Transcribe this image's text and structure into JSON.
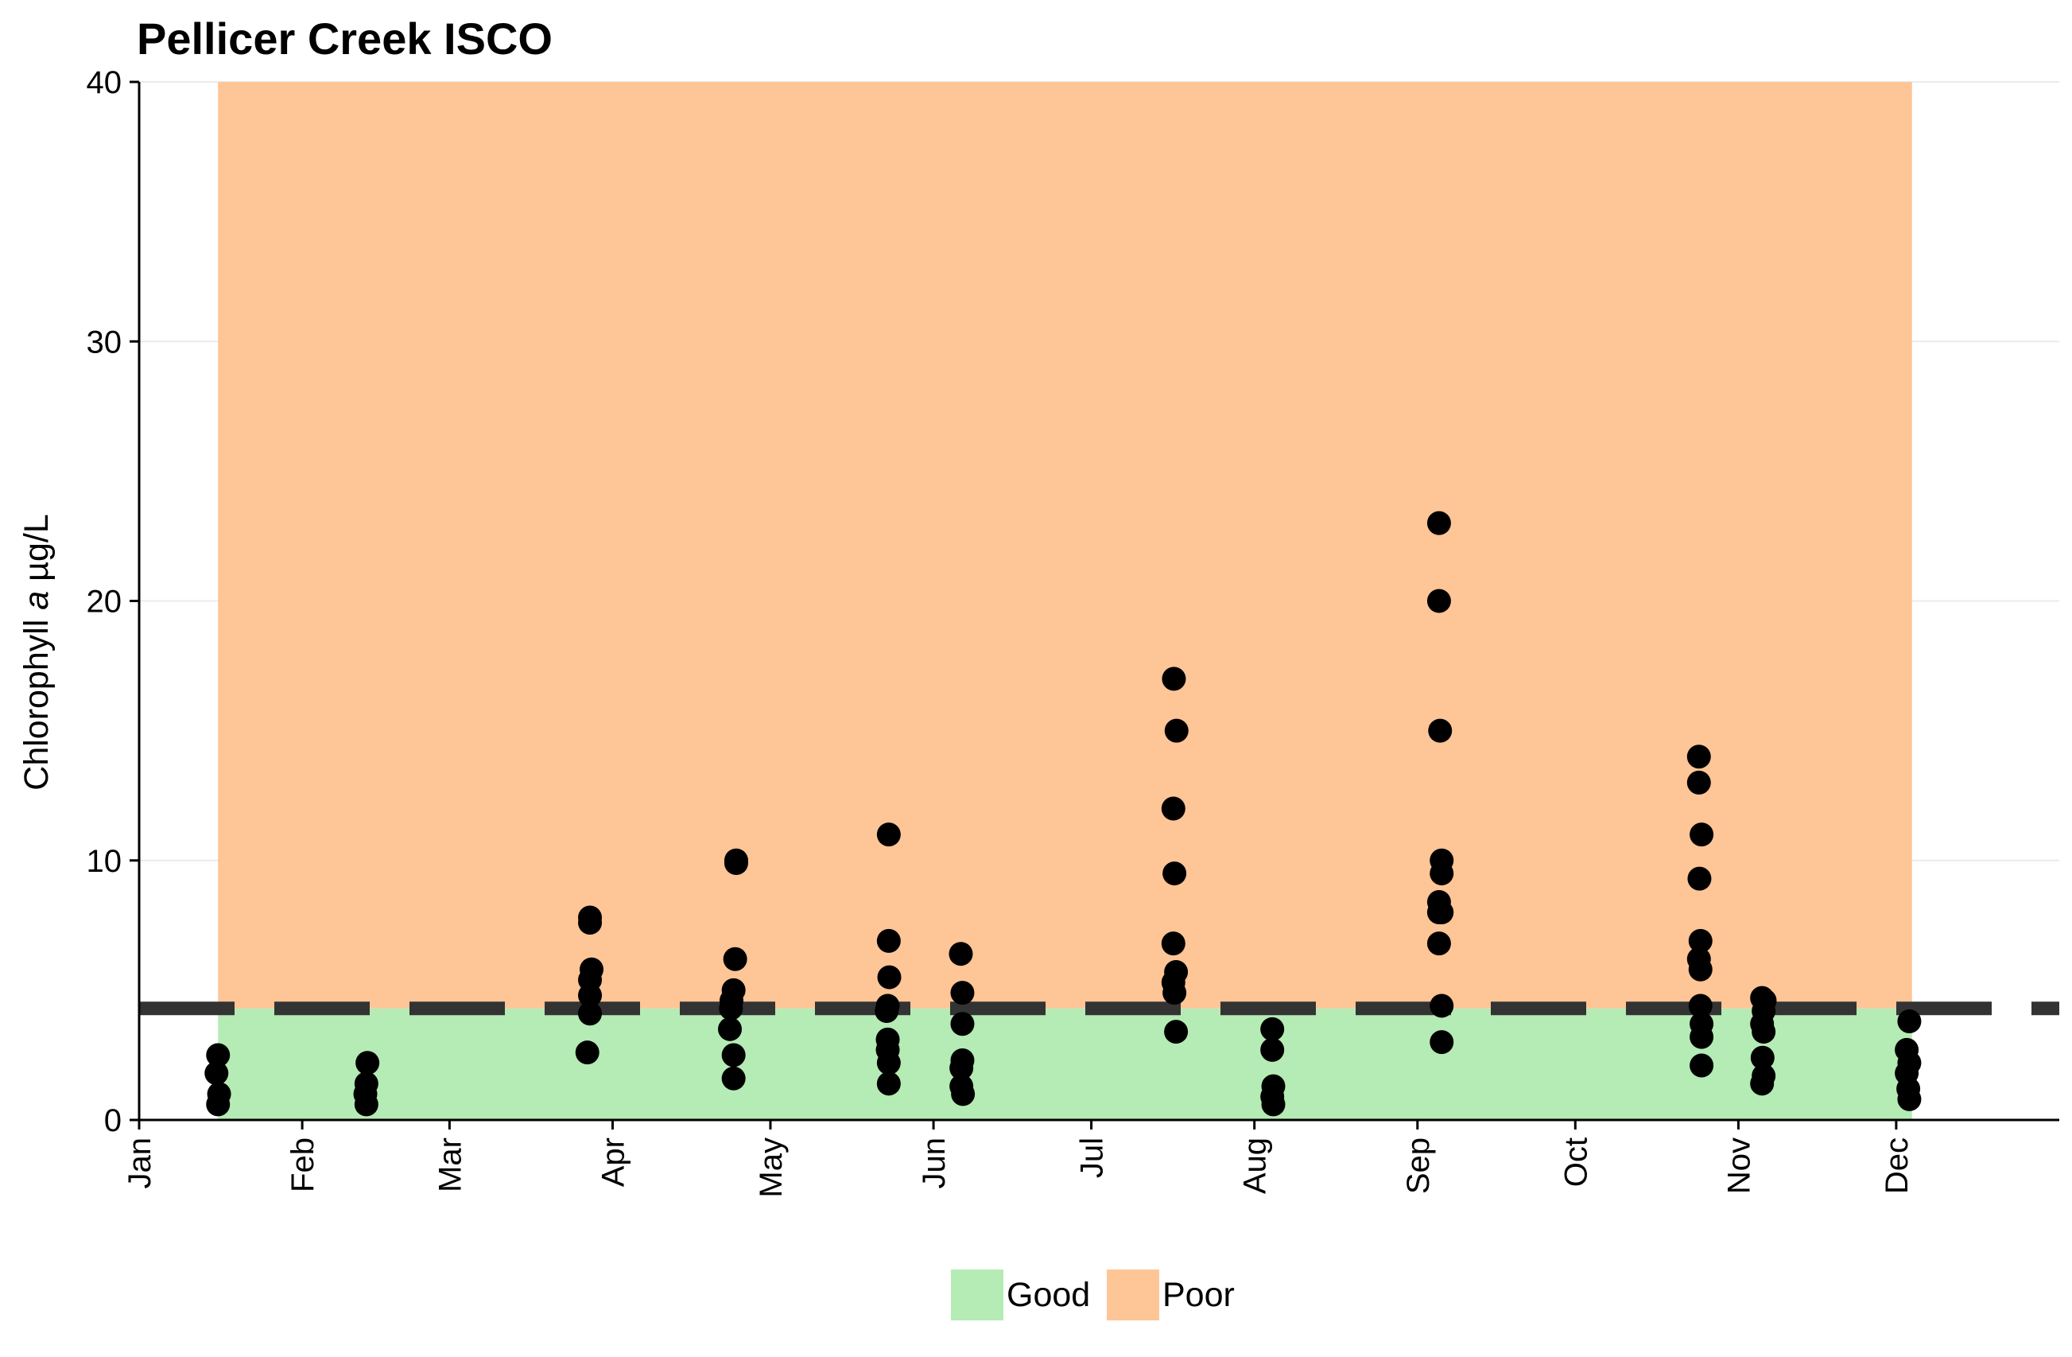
{
  "chart_data": {
    "type": "scatter",
    "title": "Pellicer Creek ISCO",
    "ylabel_parts": [
      "Chlorophyll ",
      "a",
      " µg/L"
    ],
    "xlabel": "",
    "ylim": [
      0,
      40
    ],
    "yticks": [
      0,
      10,
      20,
      30,
      40
    ],
    "x_axis_unit": "day of year",
    "xlim": [
      0,
      365
    ],
    "xticks": [
      {
        "label": "Jan",
        "day": 0
      },
      {
        "label": "Feb",
        "day": 31
      },
      {
        "label": "Mar",
        "day": 59
      },
      {
        "label": "Apr",
        "day": 90
      },
      {
        "label": "May",
        "day": 120
      },
      {
        "label": "Jun",
        "day": 151
      },
      {
        "label": "Jul",
        "day": 181
      },
      {
        "label": "Aug",
        "day": 212
      },
      {
        "label": "Sep",
        "day": 243
      },
      {
        "label": "Oct",
        "day": 273
      },
      {
        "label": "Nov",
        "day": 304
      },
      {
        "label": "Dec",
        "day": 334
      }
    ],
    "threshold": 4.3,
    "bands": [
      {
        "name": "Good",
        "color": "#b5ebb4",
        "ymin": 0,
        "ymax": 4.3,
        "x_start_day": 15,
        "x_end_day": 337
      },
      {
        "name": "Poor",
        "color": "#fec597",
        "ymin": 4.3,
        "ymax": 40,
        "x_start_day": 15,
        "x_end_day": 337
      }
    ],
    "legend": [
      {
        "label": "Good",
        "color": "#b5ebb4"
      },
      {
        "label": "Poor",
        "color": "#fec597"
      }
    ],
    "legend_position": "bottom",
    "grid": "horizontal",
    "point_color": "#000000",
    "points": [
      {
        "x": 15,
        "y": 2.5
      },
      {
        "x": 14.7,
        "y": 1.8
      },
      {
        "x": 15.2,
        "y": 1.0
      },
      {
        "x": 15,
        "y": 0.6
      },
      {
        "x": 43.4,
        "y": 2.2
      },
      {
        "x": 43.2,
        "y": 1.4
      },
      {
        "x": 43,
        "y": 1.0
      },
      {
        "x": 43.2,
        "y": 0.6
      },
      {
        "x": 85.7,
        "y": 7.8
      },
      {
        "x": 85.7,
        "y": 7.6
      },
      {
        "x": 86,
        "y": 5.8
      },
      {
        "x": 85.7,
        "y": 5.4
      },
      {
        "x": 85.7,
        "y": 4.8
      },
      {
        "x": 85.7,
        "y": 4.1
      },
      {
        "x": 85.2,
        "y": 2.6
      },
      {
        "x": 113.5,
        "y": 10.0
      },
      {
        "x": 113.5,
        "y": 9.9
      },
      {
        "x": 113.3,
        "y": 6.2
      },
      {
        "x": 113,
        "y": 5.0
      },
      {
        "x": 112.6,
        "y": 4.6
      },
      {
        "x": 112.5,
        "y": 4.3
      },
      {
        "x": 112.3,
        "y": 3.5
      },
      {
        "x": 113,
        "y": 2.5
      },
      {
        "x": 113,
        "y": 1.6
      },
      {
        "x": 142.5,
        "y": 11.0
      },
      {
        "x": 142.5,
        "y": 6.9
      },
      {
        "x": 142.6,
        "y": 5.5
      },
      {
        "x": 142.3,
        "y": 4.4
      },
      {
        "x": 142.1,
        "y": 4.2
      },
      {
        "x": 142.3,
        "y": 3.1
      },
      {
        "x": 142.3,
        "y": 2.7
      },
      {
        "x": 142.5,
        "y": 2.2
      },
      {
        "x": 142.5,
        "y": 1.4
      },
      {
        "x": 156.2,
        "y": 6.4
      },
      {
        "x": 156.5,
        "y": 4.9
      },
      {
        "x": 156.5,
        "y": 3.7
      },
      {
        "x": 156.5,
        "y": 2.3
      },
      {
        "x": 156.3,
        "y": 2.0
      },
      {
        "x": 156.3,
        "y": 1.3
      },
      {
        "x": 156.6,
        "y": 1.0
      },
      {
        "x": 196.7,
        "y": 17.0
      },
      {
        "x": 197.2,
        "y": 15.0
      },
      {
        "x": 196.6,
        "y": 12.0
      },
      {
        "x": 196.8,
        "y": 9.5
      },
      {
        "x": 196.6,
        "y": 6.8
      },
      {
        "x": 197.1,
        "y": 5.7
      },
      {
        "x": 196.6,
        "y": 5.3
      },
      {
        "x": 196.8,
        "y": 4.9
      },
      {
        "x": 197.1,
        "y": 3.4
      },
      {
        "x": 215.4,
        "y": 3.5
      },
      {
        "x": 215.4,
        "y": 2.7
      },
      {
        "x": 215.6,
        "y": 1.3
      },
      {
        "x": 215.4,
        "y": 0.9
      },
      {
        "x": 215.6,
        "y": 0.6
      },
      {
        "x": 247.1,
        "y": 23.0
      },
      {
        "x": 247.1,
        "y": 20.0
      },
      {
        "x": 247.3,
        "y": 15.0
      },
      {
        "x": 247.6,
        "y": 10.0
      },
      {
        "x": 247.6,
        "y": 9.5
      },
      {
        "x": 247.1,
        "y": 8.4
      },
      {
        "x": 247.1,
        "y": 8.0
      },
      {
        "x": 247.6,
        "y": 8.0
      },
      {
        "x": 247.1,
        "y": 6.8
      },
      {
        "x": 247.6,
        "y": 4.4
      },
      {
        "x": 247.6,
        "y": 3.0
      },
      {
        "x": 296.5,
        "y": 14.0
      },
      {
        "x": 296.5,
        "y": 13.0
      },
      {
        "x": 297,
        "y": 11.0
      },
      {
        "x": 296.6,
        "y": 9.3
      },
      {
        "x": 296.8,
        "y": 6.9
      },
      {
        "x": 296.5,
        "y": 6.2
      },
      {
        "x": 296.8,
        "y": 5.8
      },
      {
        "x": 296.8,
        "y": 4.4
      },
      {
        "x": 297,
        "y": 3.7
      },
      {
        "x": 297,
        "y": 3.2
      },
      {
        "x": 297,
        "y": 2.1
      },
      {
        "x": 308.5,
        "y": 4.7
      },
      {
        "x": 309,
        "y": 4.6
      },
      {
        "x": 308.8,
        "y": 4.2
      },
      {
        "x": 308.5,
        "y": 3.7
      },
      {
        "x": 308.8,
        "y": 3.4
      },
      {
        "x": 308.6,
        "y": 2.4
      },
      {
        "x": 308.8,
        "y": 1.7
      },
      {
        "x": 308.5,
        "y": 1.4
      },
      {
        "x": 336.5,
        "y": 3.8
      },
      {
        "x": 336,
        "y": 2.7
      },
      {
        "x": 336.5,
        "y": 2.2
      },
      {
        "x": 336,
        "y": 1.8
      },
      {
        "x": 336.3,
        "y": 1.2
      },
      {
        "x": 336.5,
        "y": 0.8
      }
    ]
  }
}
